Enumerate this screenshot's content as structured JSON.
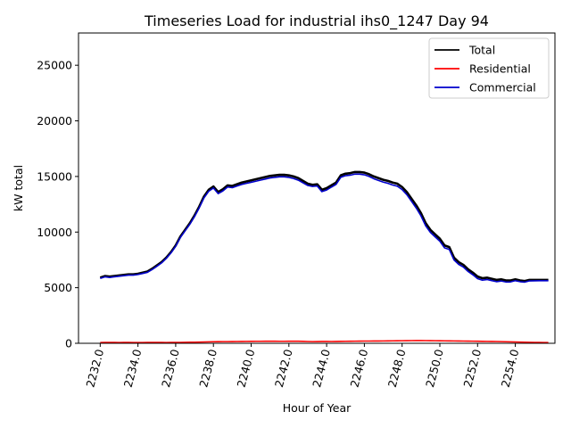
{
  "chart_data": {
    "type": "line",
    "title": "Timeseries Load for industrial ihs0_1247  Day 94",
    "xlabel": "Hour of Year",
    "ylabel": "kW total",
    "xlim": [
      2230.85,
      2256.1
    ],
    "ylim": [
      0,
      27900
    ],
    "x_ticks": [
      2232,
      2234,
      2236,
      2238,
      2240,
      2242,
      2244,
      2246,
      2248,
      2250,
      2252,
      2254
    ],
    "x_tick_labels": [
      "2232.0",
      "2234.0",
      "2236.0",
      "2238.0",
      "2240.0",
      "2242.0",
      "2244.0",
      "2246.0",
      "2248.0",
      "2250.0",
      "2252.0",
      "2254.0"
    ],
    "y_ticks": [
      0,
      5000,
      10000,
      15000,
      20000,
      25000
    ],
    "y_tick_labels": [
      "0",
      "5000",
      "10000",
      "15000",
      "20000",
      "25000"
    ],
    "grid": false,
    "legend_position": "top-right",
    "x": [
      2232.0,
      2232.25,
      2232.5,
      2232.75,
      2233.0,
      2233.25,
      2233.5,
      2233.75,
      2234.0,
      2234.25,
      2234.5,
      2234.75,
      2235.0,
      2235.25,
      2235.5,
      2235.75,
      2236.0,
      2236.25,
      2236.5,
      2236.75,
      2237.0,
      2237.25,
      2237.5,
      2237.75,
      2238.0,
      2238.25,
      2238.5,
      2238.75,
      2239.0,
      2239.25,
      2239.5,
      2239.75,
      2240.0,
      2240.25,
      2240.5,
      2240.75,
      2241.0,
      2241.25,
      2241.5,
      2241.75,
      2242.0,
      2242.25,
      2242.5,
      2242.75,
      2243.0,
      2243.25,
      2243.5,
      2243.75,
      2244.0,
      2244.25,
      2244.5,
      2244.75,
      2245.0,
      2245.25,
      2245.5,
      2245.75,
      2246.0,
      2246.25,
      2246.5,
      2246.75,
      2247.0,
      2247.25,
      2247.5,
      2247.75,
      2248.0,
      2248.25,
      2248.5,
      2248.75,
      2249.0,
      2249.25,
      2249.5,
      2249.75,
      2250.0,
      2250.25,
      2250.5,
      2250.75,
      2251.0,
      2251.25,
      2251.5,
      2251.75,
      2252.0,
      2252.25,
      2252.5,
      2252.75,
      2253.0,
      2253.25,
      2253.5,
      2253.75,
      2254.0,
      2254.25,
      2254.5,
      2254.75,
      2255.0,
      2255.25,
      2255.5,
      2255.75
    ],
    "series": [
      {
        "name": "Total",
        "color": "#000000",
        "values": [
          5900,
          6050,
          6000,
          6050,
          6100,
          6150,
          6200,
          6200,
          6250,
          6350,
          6450,
          6700,
          7000,
          7300,
          7700,
          8200,
          8800,
          9600,
          10200,
          10800,
          11500,
          12300,
          13200,
          13800,
          14100,
          13600,
          13850,
          14200,
          14150,
          14300,
          14450,
          14550,
          14650,
          14750,
          14850,
          14950,
          15050,
          15100,
          15150,
          15150,
          15100,
          15000,
          14850,
          14600,
          14350,
          14250,
          14300,
          13800,
          13950,
          14200,
          14450,
          15100,
          15250,
          15300,
          15400,
          15400,
          15350,
          15200,
          15000,
          14850,
          14700,
          14600,
          14450,
          14350,
          14050,
          13600,
          13000,
          12400,
          11700,
          10800,
          10200,
          9800,
          9400,
          8800,
          8650,
          7700,
          7300,
          7050,
          6650,
          6350,
          6000,
          5850,
          5900,
          5800,
          5700,
          5750,
          5650,
          5650,
          5750,
          5650,
          5600,
          5700,
          5700,
          5700,
          5700,
          5700
        ]
      },
      {
        "name": "Residential",
        "color": "#ff0000",
        "values": [
          70,
          75,
          80,
          75,
          70,
          72,
          75,
          70,
          68,
          70,
          72,
          75,
          80,
          75,
          70,
          72,
          75,
          80,
          85,
          95,
          100,
          110,
          120,
          130,
          140,
          145,
          150,
          150,
          155,
          160,
          165,
          170,
          175,
          180,
          180,
          182,
          185,
          185,
          180,
          180,
          185,
          190,
          185,
          175,
          160,
          150,
          155,
          165,
          170,
          160,
          165,
          175,
          180,
          185,
          190,
          195,
          200,
          200,
          205,
          205,
          210,
          215,
          220,
          225,
          230,
          235,
          240,
          245,
          245,
          240,
          235,
          230,
          225,
          220,
          215,
          210,
          205,
          200,
          195,
          190,
          185,
          175,
          170,
          165,
          160,
          150,
          140,
          130,
          120,
          110,
          100,
          90,
          80,
          75,
          70,
          70
        ]
      },
      {
        "name": "Commercial",
        "color": "#0000cc",
        "values": [
          5830,
          5975,
          5920,
          5975,
          6030,
          6078,
          6125,
          6130,
          6182,
          6280,
          6378,
          6625,
          6920,
          7225,
          7630,
          8128,
          8725,
          9520,
          10115,
          10705,
          11400,
          12190,
          13080,
          13670,
          13960,
          13455,
          13700,
          14050,
          13995,
          14140,
          14285,
          14380,
          14475,
          14570,
          14670,
          14768,
          14865,
          14915,
          14970,
          14970,
          14915,
          14810,
          14665,
          14425,
          14190,
          14100,
          14145,
          13635,
          13780,
          14040,
          14285,
          14925,
          15070,
          15115,
          15210,
          15205,
          15150,
          15000,
          14795,
          14645,
          14490,
          14385,
          14230,
          14125,
          13820,
          13365,
          12760,
          12155,
          11455,
          10560,
          9965,
          9570,
          9175,
          8580,
          8435,
          7490,
          7095,
          6850,
          6455,
          6160,
          5815,
          5675,
          5730,
          5635,
          5540,
          5600,
          5510,
          5520,
          5630,
          5540,
          5500,
          5610,
          5620,
          5625,
          5630,
          5630
        ]
      }
    ]
  }
}
